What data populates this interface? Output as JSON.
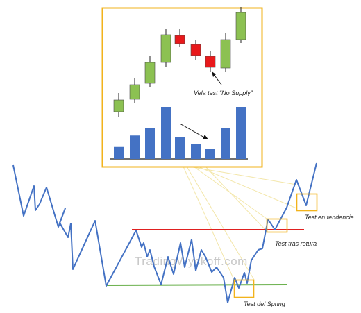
{
  "inset": {
    "annotation": "Vela test “No Supply”",
    "frame_color": "#f2b31c",
    "candles": [
      {
        "color": "green"
      },
      {
        "color": "green"
      },
      {
        "color": "green"
      },
      {
        "color": "green"
      },
      {
        "color": "red"
      },
      {
        "color": "red"
      },
      {
        "color": "red"
      },
      {
        "color": "green"
      },
      {
        "color": "green"
      }
    ],
    "volume_levels": [
      0.23,
      0.45,
      0.59,
      1.0,
      0.42,
      0.29,
      0.19,
      0.59,
      1.0
    ]
  },
  "main": {
    "resistance_color": "#e02020",
    "support_color": "#6ab04c",
    "price_color": "#4472c4"
  },
  "labels": {
    "test_trend": "Test en tendencia",
    "test_breakout": "Test tras rotura",
    "test_spring": "Test del Spring"
  },
  "watermark": "TradingWyckoff.com",
  "colors": {
    "candle_green": "#8cc152",
    "candle_red": "#e8191b",
    "volume_bar": "#4472c4",
    "highlight_box": "#f2b31c"
  }
}
